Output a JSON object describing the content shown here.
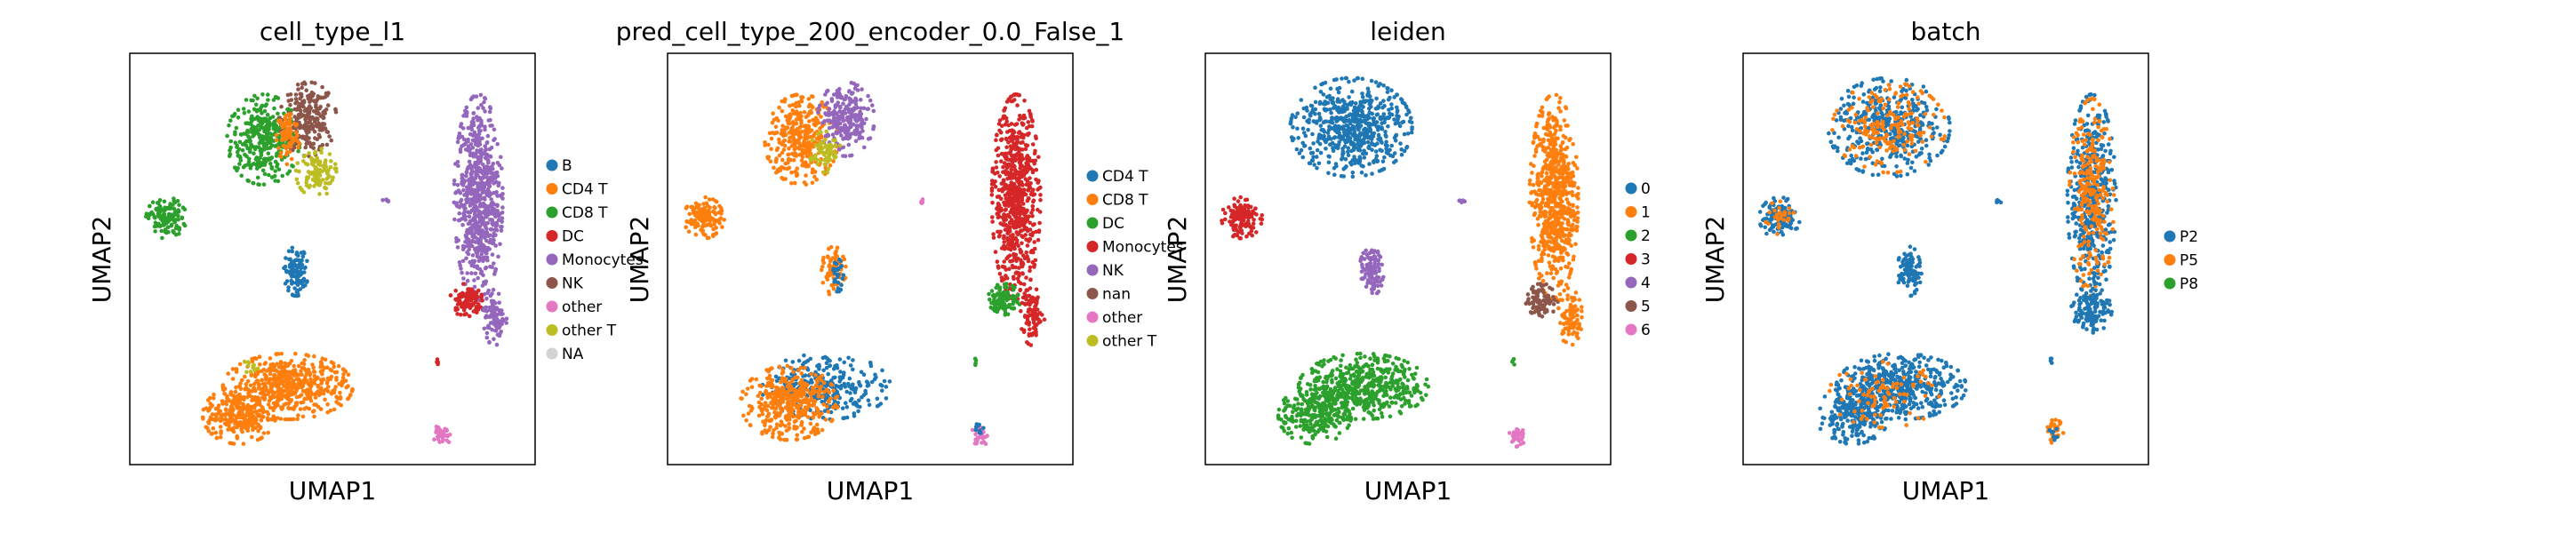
{
  "chart_data": [
    {
      "type": "scatter",
      "title": "cell_type_l1",
      "xlabel": "UMAP1",
      "ylabel": "UMAP2",
      "legend": [
        {
          "name": "B",
          "color": "#1f77b4"
        },
        {
          "name": "CD4 T",
          "color": "#ff7f0e"
        },
        {
          "name": "CD8 T",
          "color": "#2ca02c"
        },
        {
          "name": "DC",
          "color": "#d62728"
        },
        {
          "name": "Monocytes",
          "color": "#9467bd"
        },
        {
          "name": "NK",
          "color": "#8c564b"
        },
        {
          "name": "other",
          "color": "#e377c2"
        },
        {
          "name": "other T",
          "color": "#bcbd22"
        },
        {
          "name": "NA",
          "color": "#d3d3d3"
        }
      ],
      "clusters": [
        {
          "label": "CD8 T",
          "cx": 0.33,
          "cy": 0.79,
          "rx": 0.09,
          "ry": 0.11,
          "n": 340
        },
        {
          "label": "NK",
          "cx": 0.44,
          "cy": 0.84,
          "rx": 0.07,
          "ry": 0.09,
          "n": 240
        },
        {
          "label": "CD4 T",
          "cx": 0.39,
          "cy": 0.8,
          "rx": 0.03,
          "ry": 0.07,
          "n": 90
        },
        {
          "label": "other T",
          "cx": 0.46,
          "cy": 0.71,
          "rx": 0.05,
          "ry": 0.06,
          "n": 110
        },
        {
          "label": "CD8 T",
          "cx": 0.09,
          "cy": 0.6,
          "rx": 0.05,
          "ry": 0.05,
          "n": 130
        },
        {
          "label": "B",
          "cx": 0.41,
          "cy": 0.47,
          "rx": 0.03,
          "ry": 0.06,
          "n": 110
        },
        {
          "label": "CD4 T",
          "cx": 0.39,
          "cy": 0.19,
          "rx": 0.16,
          "ry": 0.08,
          "n": 520
        },
        {
          "label": "CD4 T",
          "cx": 0.27,
          "cy": 0.12,
          "rx": 0.09,
          "ry": 0.07,
          "n": 260
        },
        {
          "label": "other T",
          "cx": 0.3,
          "cy": 0.24,
          "rx": 0.02,
          "ry": 0.02,
          "n": 12
        },
        {
          "label": "Monocytes",
          "cx": 0.86,
          "cy": 0.65,
          "rx": 0.06,
          "ry": 0.25,
          "n": 700
        },
        {
          "label": "DC",
          "cx": 0.83,
          "cy": 0.4,
          "rx": 0.04,
          "ry": 0.04,
          "n": 100
        },
        {
          "label": "Monocytes",
          "cx": 0.9,
          "cy": 0.36,
          "rx": 0.03,
          "ry": 0.07,
          "n": 90
        },
        {
          "label": "Monocytes",
          "cx": 0.63,
          "cy": 0.64,
          "rx": 0.01,
          "ry": 0.005,
          "n": 6
        },
        {
          "label": "DC",
          "cx": 0.76,
          "cy": 0.25,
          "rx": 0.005,
          "ry": 0.01,
          "n": 4
        },
        {
          "label": "other",
          "cx": 0.77,
          "cy": 0.07,
          "rx": 0.02,
          "ry": 0.03,
          "n": 35
        }
      ]
    },
    {
      "type": "scatter",
      "title": "pred_cell_type_200_encoder_0.0_False_1",
      "xlabel": "UMAP1",
      "ylabel": "UMAP2",
      "legend": [
        {
          "name": "CD4 T",
          "color": "#1f77b4"
        },
        {
          "name": "CD8 T",
          "color": "#ff7f0e"
        },
        {
          "name": "DC",
          "color": "#2ca02c"
        },
        {
          "name": "Monocytes",
          "color": "#d62728"
        },
        {
          "name": "NK",
          "color": "#9467bd"
        },
        {
          "name": "nan",
          "color": "#8c564b"
        },
        {
          "name": "other",
          "color": "#e377c2"
        },
        {
          "name": "other T",
          "color": "#bcbd22"
        }
      ],
      "clusters": [
        {
          "label": "CD8 T",
          "cx": 0.33,
          "cy": 0.79,
          "rx": 0.09,
          "ry": 0.11,
          "n": 340
        },
        {
          "label": "NK",
          "cx": 0.44,
          "cy": 0.84,
          "rx": 0.07,
          "ry": 0.09,
          "n": 240
        },
        {
          "label": "other T",
          "cx": 0.39,
          "cy": 0.76,
          "rx": 0.04,
          "ry": 0.05,
          "n": 70
        },
        {
          "label": "CD8 T",
          "cx": 0.09,
          "cy": 0.6,
          "rx": 0.05,
          "ry": 0.05,
          "n": 130
        },
        {
          "label": "CD8 T",
          "cx": 0.41,
          "cy": 0.47,
          "rx": 0.03,
          "ry": 0.06,
          "n": 70
        },
        {
          "label": "CD4 T",
          "cx": 0.42,
          "cy": 0.46,
          "rx": 0.015,
          "ry": 0.04,
          "n": 30
        },
        {
          "label": "CD4 T",
          "cx": 0.39,
          "cy": 0.19,
          "rx": 0.16,
          "ry": 0.08,
          "n": 300
        },
        {
          "label": "CD8 T",
          "cx": 0.3,
          "cy": 0.15,
          "rx": 0.12,
          "ry": 0.09,
          "n": 420
        },
        {
          "label": "Monocytes",
          "cx": 0.86,
          "cy": 0.65,
          "rx": 0.06,
          "ry": 0.25,
          "n": 720
        },
        {
          "label": "DC",
          "cx": 0.83,
          "cy": 0.4,
          "rx": 0.04,
          "ry": 0.04,
          "n": 100
        },
        {
          "label": "Monocytes",
          "cx": 0.9,
          "cy": 0.36,
          "rx": 0.03,
          "ry": 0.07,
          "n": 90
        },
        {
          "label": "other",
          "cx": 0.63,
          "cy": 0.64,
          "rx": 0.01,
          "ry": 0.005,
          "n": 6
        },
        {
          "label": "DC",
          "cx": 0.76,
          "cy": 0.25,
          "rx": 0.005,
          "ry": 0.01,
          "n": 4
        },
        {
          "label": "other",
          "cx": 0.77,
          "cy": 0.07,
          "rx": 0.02,
          "ry": 0.03,
          "n": 30
        },
        {
          "label": "CD4 T",
          "cx": 0.77,
          "cy": 0.09,
          "rx": 0.01,
          "ry": 0.02,
          "n": 10
        }
      ]
    },
    {
      "type": "scatter",
      "title": "leiden",
      "xlabel": "UMAP1",
      "ylabel": "UMAP2",
      "legend": [
        {
          "name": "0",
          "color": "#1f77b4"
        },
        {
          "name": "1",
          "color": "#ff7f0e"
        },
        {
          "name": "2",
          "color": "#2ca02c"
        },
        {
          "name": "3",
          "color": "#d62728"
        },
        {
          "name": "4",
          "color": "#9467bd"
        },
        {
          "name": "5",
          "color": "#8c564b"
        },
        {
          "name": "6",
          "color": "#e377c2"
        }
      ],
      "clusters": [
        {
          "label": "0",
          "cx": 0.36,
          "cy": 0.82,
          "rx": 0.15,
          "ry": 0.12,
          "n": 600
        },
        {
          "label": "3",
          "cx": 0.09,
          "cy": 0.6,
          "rx": 0.05,
          "ry": 0.05,
          "n": 130
        },
        {
          "label": "4",
          "cx": 0.41,
          "cy": 0.47,
          "rx": 0.03,
          "ry": 0.06,
          "n": 110
        },
        {
          "label": "2",
          "cx": 0.39,
          "cy": 0.19,
          "rx": 0.16,
          "ry": 0.08,
          "n": 520
        },
        {
          "label": "2",
          "cx": 0.27,
          "cy": 0.12,
          "rx": 0.09,
          "ry": 0.07,
          "n": 260
        },
        {
          "label": "1",
          "cx": 0.86,
          "cy": 0.65,
          "rx": 0.06,
          "ry": 0.25,
          "n": 700
        },
        {
          "label": "5",
          "cx": 0.83,
          "cy": 0.4,
          "rx": 0.04,
          "ry": 0.04,
          "n": 100
        },
        {
          "label": "1",
          "cx": 0.9,
          "cy": 0.36,
          "rx": 0.03,
          "ry": 0.07,
          "n": 90
        },
        {
          "label": "4",
          "cx": 0.63,
          "cy": 0.64,
          "rx": 0.01,
          "ry": 0.005,
          "n": 6
        },
        {
          "label": "2",
          "cx": 0.76,
          "cy": 0.25,
          "rx": 0.005,
          "ry": 0.01,
          "n": 4
        },
        {
          "label": "6",
          "cx": 0.77,
          "cy": 0.07,
          "rx": 0.02,
          "ry": 0.03,
          "n": 35
        }
      ]
    },
    {
      "type": "scatter",
      "title": "batch",
      "xlabel": "UMAP1",
      "ylabel": "UMAP2",
      "legend": [
        {
          "name": "P2",
          "color": "#1f77b4"
        },
        {
          "name": "P5",
          "color": "#ff7f0e"
        },
        {
          "name": "P8",
          "color": "#2ca02c"
        }
      ],
      "clusters": [
        {
          "label": "P2",
          "cx": 0.36,
          "cy": 0.82,
          "rx": 0.15,
          "ry": 0.12,
          "n": 420
        },
        {
          "label": "P5",
          "cx": 0.36,
          "cy": 0.82,
          "rx": 0.14,
          "ry": 0.11,
          "n": 200
        },
        {
          "label": "P2",
          "cx": 0.09,
          "cy": 0.6,
          "rx": 0.05,
          "ry": 0.05,
          "n": 110
        },
        {
          "label": "P5",
          "cx": 0.09,
          "cy": 0.6,
          "rx": 0.04,
          "ry": 0.04,
          "n": 30
        },
        {
          "label": "P2",
          "cx": 0.41,
          "cy": 0.47,
          "rx": 0.03,
          "ry": 0.06,
          "n": 100
        },
        {
          "label": "P2",
          "cx": 0.39,
          "cy": 0.19,
          "rx": 0.16,
          "ry": 0.08,
          "n": 460
        },
        {
          "label": "P2",
          "cx": 0.27,
          "cy": 0.12,
          "rx": 0.09,
          "ry": 0.07,
          "n": 240
        },
        {
          "label": "P5",
          "cx": 0.35,
          "cy": 0.17,
          "rx": 0.14,
          "ry": 0.08,
          "n": 90
        },
        {
          "label": "P2",
          "cx": 0.86,
          "cy": 0.65,
          "rx": 0.06,
          "ry": 0.25,
          "n": 480
        },
        {
          "label": "P5",
          "cx": 0.86,
          "cy": 0.65,
          "rx": 0.055,
          "ry": 0.24,
          "n": 260
        },
        {
          "label": "P2",
          "cx": 0.86,
          "cy": 0.38,
          "rx": 0.05,
          "ry": 0.06,
          "n": 120
        },
        {
          "label": "P2",
          "cx": 0.63,
          "cy": 0.64,
          "rx": 0.01,
          "ry": 0.005,
          "n": 6
        },
        {
          "label": "P2",
          "cx": 0.76,
          "cy": 0.25,
          "rx": 0.005,
          "ry": 0.01,
          "n": 4
        },
        {
          "label": "P5",
          "cx": 0.77,
          "cy": 0.08,
          "rx": 0.02,
          "ry": 0.03,
          "n": 30
        },
        {
          "label": "P2",
          "cx": 0.77,
          "cy": 0.08,
          "rx": 0.015,
          "ry": 0.02,
          "n": 8
        }
      ]
    }
  ]
}
